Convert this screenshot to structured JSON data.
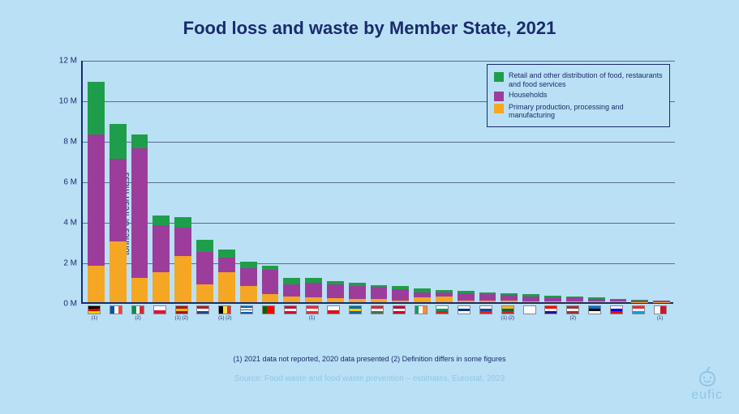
{
  "title": "Food loss and waste by Member State, 2021",
  "ylabel": "tonnes of fresh mass",
  "footnote": "(1) 2021 data not reported, 2020 data presented (2) Definition differs in some figures",
  "source": "Source: Food waste and food waste prevention – estimates, Eurostat, 2023",
  "logo_text": "eufic",
  "chart": {
    "type": "stacked-bar",
    "background": "#bae0f5",
    "axis_color": "#1a2b6d",
    "grid_color": "#5a6b8d",
    "ymax": 12,
    "yticks": [
      0,
      2,
      4,
      6,
      8,
      10,
      12
    ],
    "ytick_labels": [
      "0 M",
      "2 M",
      "4 M",
      "6 M",
      "8 M",
      "10 M",
      "12 M"
    ],
    "legend": [
      {
        "label": "Retail and other distribution of food, restaurants and food services",
        "color": "#1e9e4a"
      },
      {
        "label": "Households",
        "color": "#9c3d9c"
      },
      {
        "label": "Primary production, processing and manufacturing",
        "color": "#f5a623"
      }
    ],
    "series_colors": {
      "primary": "#f5a623",
      "households": "#9c3d9c",
      "retail": "#1e9e4a"
    },
    "data": [
      {
        "country": "DE",
        "note": "(1)",
        "primary": 1.8,
        "households": 6.5,
        "retail": 2.6,
        "flag": {
          "dir": "h",
          "c": [
            "#000",
            "#dd0000",
            "#ffce00"
          ]
        }
      },
      {
        "country": "FR",
        "note": "",
        "primary": 3.0,
        "households": 4.1,
        "retail": 1.7,
        "flag": {
          "dir": "v",
          "c": [
            "#0055a4",
            "#fff",
            "#ef4135"
          ]
        }
      },
      {
        "country": "IT",
        "note": "(2)",
        "primary": 1.2,
        "households": 6.4,
        "retail": 0.7,
        "flag": {
          "dir": "v",
          "c": [
            "#009246",
            "#fff",
            "#ce2b37"
          ]
        }
      },
      {
        "country": "PL",
        "note": "",
        "primary": 1.5,
        "households": 2.3,
        "retail": 0.5,
        "flag": {
          "dir": "h",
          "c": [
            "#fff",
            "#dc143c"
          ]
        }
      },
      {
        "country": "ES",
        "note": "(1) (2)",
        "primary": 2.3,
        "households": 1.4,
        "retail": 0.5,
        "flag": {
          "dir": "h",
          "c": [
            "#aa151b",
            "#f1bf00",
            "#aa151b"
          ]
        }
      },
      {
        "country": "NL",
        "note": "",
        "primary": 0.9,
        "households": 1.6,
        "retail": 0.6,
        "flag": {
          "dir": "h",
          "c": [
            "#ae1c28",
            "#fff",
            "#21468b"
          ]
        }
      },
      {
        "country": "BE",
        "note": "(1) (2)",
        "primary": 1.5,
        "households": 0.7,
        "retail": 0.4,
        "flag": {
          "dir": "v",
          "c": [
            "#000",
            "#fae042",
            "#ed2939"
          ]
        }
      },
      {
        "country": "GR",
        "note": "",
        "primary": 0.8,
        "households": 0.9,
        "retail": 0.3,
        "flag": {
          "dir": "h",
          "c": [
            "#0d5eaf",
            "#fff",
            "#0d5eaf",
            "#fff",
            "#0d5eaf"
          ]
        }
      },
      {
        "country": "PT",
        "note": "",
        "primary": 0.4,
        "households": 1.2,
        "retail": 0.2,
        "flag": {
          "dir": "v",
          "c": [
            "#006600",
            "#ff0000",
            "#ff0000"
          ]
        }
      },
      {
        "country": "DK",
        "note": "",
        "primary": 0.3,
        "households": 0.6,
        "retail": 0.3,
        "flag": {
          "dir": "h",
          "c": [
            "#c8102e",
            "#fff",
            "#c8102e"
          ]
        }
      },
      {
        "country": "AT",
        "note": "(1)",
        "primary": 0.25,
        "households": 0.7,
        "retail": 0.25,
        "flag": {
          "dir": "h",
          "c": [
            "#ed2939",
            "#fff",
            "#ed2939"
          ]
        }
      },
      {
        "country": "CZ",
        "note": "",
        "primary": 0.2,
        "households": 0.7,
        "retail": 0.15,
        "flag": {
          "dir": "h",
          "c": [
            "#fff",
            "#d7141a"
          ]
        }
      },
      {
        "country": "SE",
        "note": "",
        "primary": 0.15,
        "households": 0.65,
        "retail": 0.15,
        "flag": {
          "dir": "h",
          "c": [
            "#006aa7",
            "#fecc00",
            "#006aa7"
          ]
        }
      },
      {
        "country": "HU",
        "note": "",
        "primary": 0.15,
        "households": 0.6,
        "retail": 0.1,
        "flag": {
          "dir": "h",
          "c": [
            "#ce2939",
            "#fff",
            "#477050"
          ]
        }
      },
      {
        "country": "NO",
        "note": "",
        "primary": 0.1,
        "households": 0.55,
        "retail": 0.15,
        "flag": {
          "dir": "h",
          "c": [
            "#ba0c2f",
            "#fff",
            "#ba0c2f"
          ]
        }
      },
      {
        "country": "IE",
        "note": "",
        "primary": 0.25,
        "households": 0.25,
        "retail": 0.2,
        "flag": {
          "dir": "v",
          "c": [
            "#169b62",
            "#fff",
            "#ff883e"
          ]
        }
      },
      {
        "country": "BG",
        "note": "",
        "primary": 0.3,
        "households": 0.2,
        "retail": 0.1,
        "flag": {
          "dir": "h",
          "c": [
            "#fff",
            "#00966e",
            "#d62612"
          ]
        }
      },
      {
        "country": "FI",
        "note": "",
        "primary": 0.1,
        "households": 0.35,
        "retail": 0.1,
        "flag": {
          "dir": "h",
          "c": [
            "#fff",
            "#003580",
            "#fff"
          ]
        }
      },
      {
        "country": "SK",
        "note": "",
        "primary": 0.1,
        "households": 0.3,
        "retail": 0.1,
        "flag": {
          "dir": "h",
          "c": [
            "#fff",
            "#0b4ea2",
            "#ee1c25"
          ]
        }
      },
      {
        "country": "LT",
        "note": "(1) (2)",
        "primary": 0.1,
        "households": 0.25,
        "retail": 0.1,
        "flag": {
          "dir": "h",
          "c": [
            "#fdb913",
            "#006a44",
            "#c1272d"
          ]
        }
      },
      {
        "country": "CY",
        "note": "",
        "primary": 0.05,
        "households": 0.25,
        "retail": 0.1,
        "flag": {
          "dir": "h",
          "c": [
            "#fff",
            "#fff"
          ]
        }
      },
      {
        "country": "HR",
        "note": "",
        "primary": 0.05,
        "households": 0.2,
        "retail": 0.08,
        "flag": {
          "dir": "h",
          "c": [
            "#ff0000",
            "#fff",
            "#171796"
          ]
        }
      },
      {
        "country": "LV",
        "note": "(2)",
        "primary": 0.05,
        "households": 0.18,
        "retail": 0.05,
        "flag": {
          "dir": "h",
          "c": [
            "#9e3039",
            "#fff",
            "#9e3039"
          ]
        }
      },
      {
        "country": "EE",
        "note": "",
        "primary": 0.04,
        "households": 0.14,
        "retail": 0.05,
        "flag": {
          "dir": "h",
          "c": [
            "#0072ce",
            "#000",
            "#fff"
          ]
        }
      },
      {
        "country": "SI",
        "note": "",
        "primary": 0.03,
        "households": 0.1,
        "retail": 0.05,
        "flag": {
          "dir": "h",
          "c": [
            "#fff",
            "#0000ff",
            "#ff0000"
          ]
        }
      },
      {
        "country": "LU",
        "note": "",
        "primary": 0.02,
        "households": 0.08,
        "retail": 0.03,
        "flag": {
          "dir": "h",
          "c": [
            "#ed2939",
            "#fff",
            "#00a1de"
          ]
        }
      },
      {
        "country": "MT",
        "note": "(1)",
        "primary": 0.01,
        "households": 0.06,
        "retail": 0.02,
        "flag": {
          "dir": "v",
          "c": [
            "#fff",
            "#cf142b"
          ]
        }
      }
    ]
  }
}
